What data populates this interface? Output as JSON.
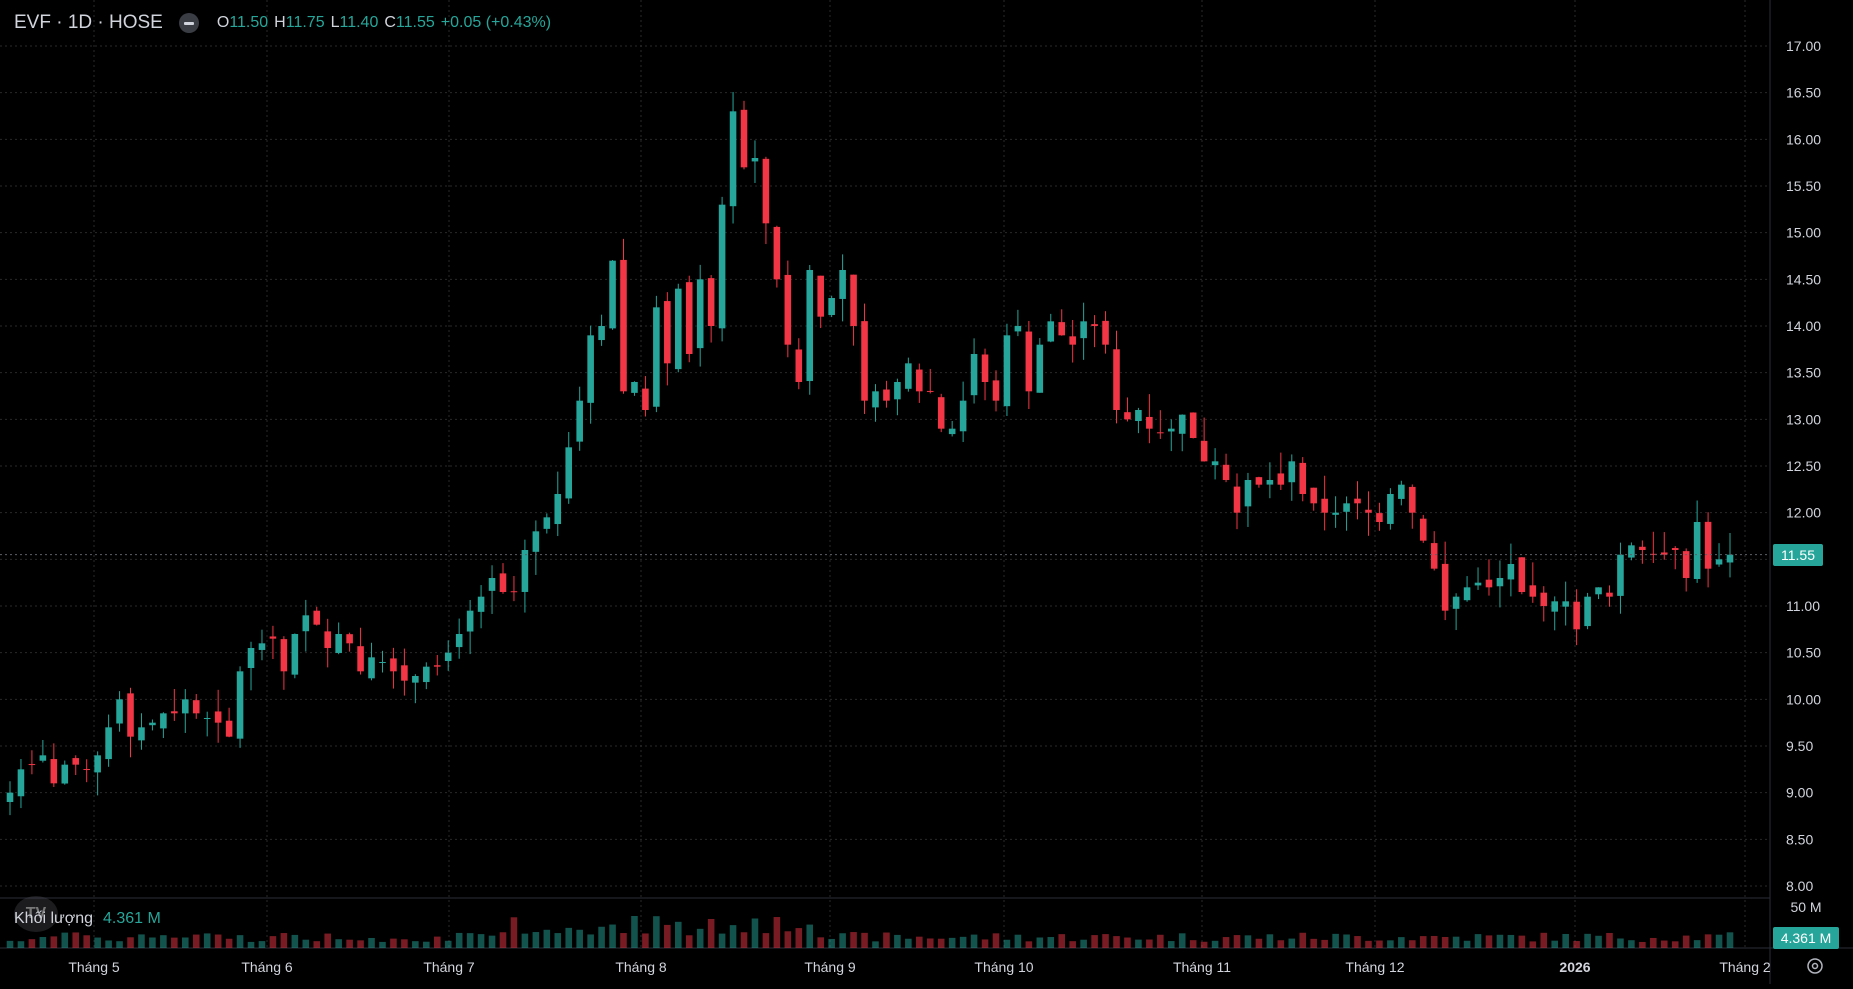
{
  "legend": {
    "symbol": "EVF · 1D · HOSE",
    "o_label": "O",
    "o_value": "11.50",
    "h_label": "H",
    "h_value": "11.75",
    "l_label": "L",
    "l_value": "11.40",
    "c_label": "C",
    "c_value": "11.55",
    "change": "+0.05 (+0.43%)"
  },
  "volume_legend": {
    "label": "Khối lượng",
    "value": "4.361 M"
  },
  "price_tag": "11.55",
  "volume_tag": "4.361 M",
  "volume_scale_label": "50 M",
  "logo_text": "TV",
  "colors": {
    "up": "#26a69a",
    "down": "#f23645",
    "background": "#000000",
    "grid": "#2a2a2a",
    "text": "#d1d4dc"
  },
  "chart_data": {
    "type": "candlestick",
    "y_ticks": [
      "17.00",
      "16.50",
      "16.00",
      "15.50",
      "15.00",
      "14.50",
      "14.00",
      "13.50",
      "13.00",
      "12.50",
      "12.00",
      "11.50",
      "11.00",
      "10.50",
      "10.00",
      "9.50",
      "9.00",
      "8.50",
      "8.00"
    ],
    "ylim": [
      8.0,
      17.0
    ],
    "x_ticks": [
      "Tháng 5",
      "Tháng 6",
      "Tháng 7",
      "Tháng 8",
      "Tháng 9",
      "Tháng 10",
      "Tháng 11",
      "Tháng 12",
      "2026",
      "Tháng 2"
    ],
    "last_close": 11.55,
    "closes": [
      9.0,
      9.25,
      9.3,
      9.4,
      9.1,
      9.3,
      9.3,
      9.25,
      9.4,
      9.7,
      10.0,
      9.6,
      9.7,
      9.75,
      9.85,
      9.85,
      10.0,
      9.85,
      9.8,
      9.75,
      9.6,
      10.3,
      10.55,
      10.6,
      10.65,
      10.3,
      10.7,
      10.9,
      10.8,
      10.55,
      10.7,
      10.6,
      10.3,
      10.45,
      10.4,
      10.3,
      10.2,
      10.25,
      10.35,
      10.35,
      10.5,
      10.7,
      10.95,
      11.1,
      11.3,
      11.15,
      11.15,
      11.6,
      11.8,
      11.95,
      12.2,
      12.7,
      13.2,
      13.9,
      14.0,
      14.7,
      13.3,
      13.4,
      13.1,
      14.2,
      13.6,
      14.4,
      13.7,
      14.5,
      14.0,
      15.3,
      16.3,
      15.7,
      15.8,
      15.1,
      14.5,
      13.8,
      13.4,
      14.6,
      14.1,
      14.3,
      14.6,
      14.0,
      13.2,
      13.3,
      13.2,
      13.4,
      13.6,
      13.3,
      13.3,
      12.9,
      12.9,
      13.2,
      13.7,
      13.4,
      13.2,
      13.9,
      14.0,
      13.3,
      13.8,
      14.05,
      13.9,
      13.8,
      14.05,
      14.0,
      13.8,
      13.1,
      13.0,
      13.1,
      12.9,
      12.85,
      12.9,
      13.05,
      12.8,
      12.55,
      12.55,
      12.35,
      12.0,
      12.35,
      12.3,
      12.35,
      12.3,
      12.55,
      12.2,
      12.1,
      12.0,
      12.0,
      12.1,
      12.1,
      12.0,
      11.9,
      12.2,
      12.3,
      12.0,
      11.7,
      11.4,
      10.95,
      11.1,
      11.2,
      11.25,
      11.2,
      11.3,
      11.45,
      11.15,
      11.1,
      11.0,
      11.05,
      11.05,
      10.75,
      11.1,
      11.2,
      11.1,
      11.55,
      11.65,
      11.6,
      11.55,
      11.55,
      11.6,
      11.3,
      11.9,
      11.4,
      11.5,
      11.55
    ]
  }
}
